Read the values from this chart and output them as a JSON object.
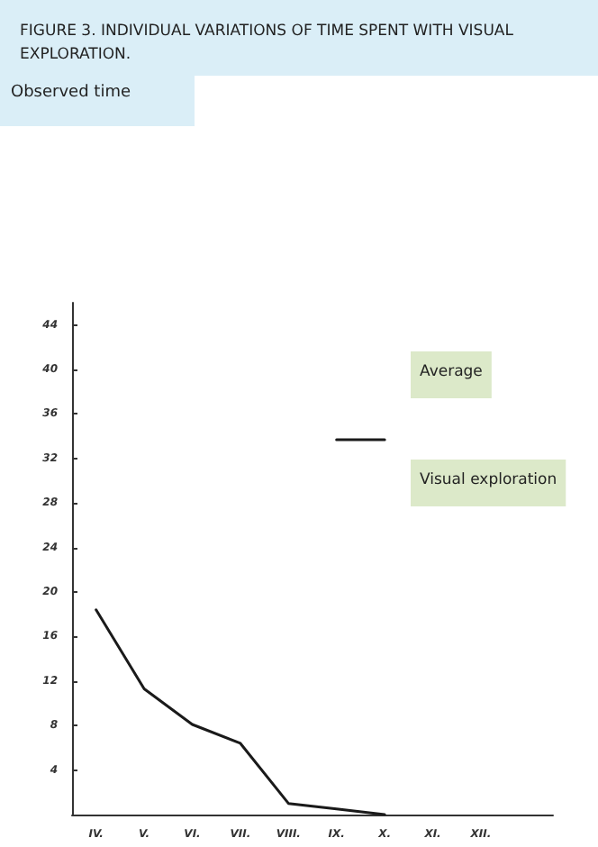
{
  "chart_data": {
    "type": "line",
    "title": "FIGURE 3. INDIVIDUAL VARIATIONS OF TIME SPENT WITH VISUAL EXPLORATION.",
    "categories": [
      "IV.",
      "V.",
      "VI.",
      "VII.",
      "VIII.",
      "IX.",
      "X.",
      "XI.",
      "XII.",
      null
    ],
    "series": [
      {
        "color": "#1a1a1a",
        "values": [
          18.4,
          11.3,
          8.1,
          6.4,
          1.0,
          0.5,
          0,
          null,
          null,
          null
        ]
      },
      {
        "color": "#1a1a1a",
        "values": [
          null,
          null,
          null,
          null,
          null,
          33.7,
          33.7,
          null,
          null,
          null
        ]
      }
    ],
    "annotations": [
      "Observed time",
      "Average",
      "Visual exploration"
    ],
    "ylim": [
      0,
      46
    ],
    "yticks": [
      4,
      8,
      12,
      16,
      20,
      24,
      28,
      32,
      36,
      40,
      44
    ],
    "grid": false,
    "marker": "none",
    "line_style": "solid"
  }
}
